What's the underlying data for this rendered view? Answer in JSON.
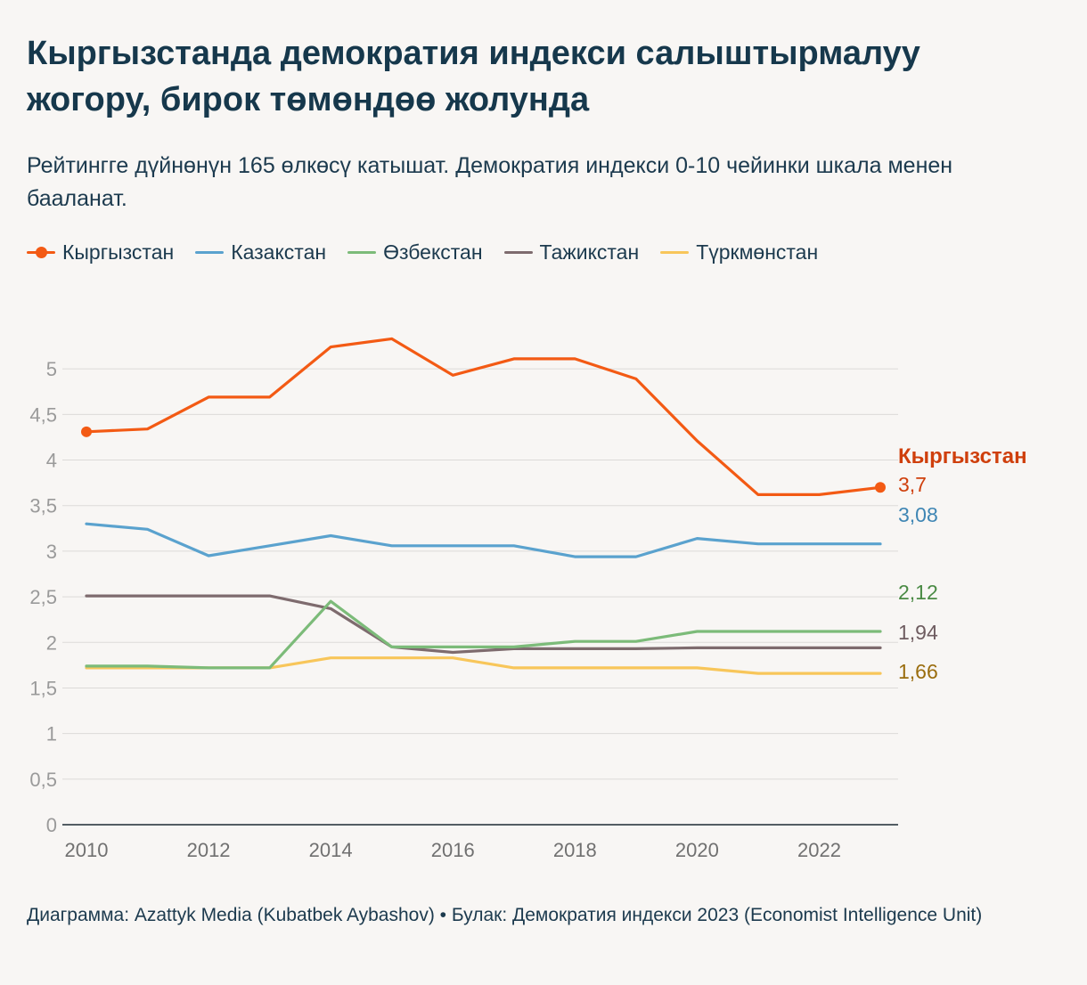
{
  "title": "Кыргызстанда демократия индекси салыштырмалуу жогору, бирок төмөндөө жолунда",
  "subtitle": "Рейтингге дүйнөнүн 165 өлкөсү катышат. Демократия индекси 0-10 чейинки шкала менен бааланат.",
  "footer": "Диаграмма: Azattyk Media (Kubatbek Aybashov) • Булак: Демократия индекси 2023 (Economist Intelligence Unit)",
  "legend": [
    {
      "label": "Кыргызстан",
      "color": "#f35a14",
      "marker": true
    },
    {
      "label": "Казакстан",
      "color": "#5aa2ce",
      "marker": false
    },
    {
      "label": "Өзбекстан",
      "color": "#7cbb79",
      "marker": false
    },
    {
      "label": "Тажикстан",
      "color": "#7e6b6e",
      "marker": false
    },
    {
      "label": "Түркмөнстан",
      "color": "#f8c65a",
      "marker": false
    }
  ],
  "chart_data": {
    "type": "line",
    "title": "Кыргызстанда демократия индекси салыштырмалуу жогору, бирок төмөндөө жолунда",
    "xlabel": "",
    "ylabel": "",
    "x": [
      2010,
      2011,
      2012,
      2013,
      2014,
      2015,
      2016,
      2017,
      2018,
      2019,
      2020,
      2021,
      2022,
      2023
    ],
    "xticks": [
      "2010",
      "2012",
      "2014",
      "2016",
      "2018",
      "2020",
      "2022"
    ],
    "yticks": [
      "0",
      "0,5",
      "1",
      "1,5",
      "2",
      "2,5",
      "3",
      "3,5",
      "4",
      "4,5",
      "5"
    ],
    "ylim": [
      0,
      5.5
    ],
    "grid": true,
    "series": [
      {
        "name": "Кыргызстан",
        "color": "#f35a14",
        "label_color": "#cf3f0c",
        "markers": true,
        "end_name": "Кыргызстан",
        "end_label": "3,7",
        "values": [
          4.31,
          4.34,
          4.69,
          4.69,
          5.24,
          5.33,
          4.93,
          5.11,
          5.11,
          4.89,
          4.21,
          3.62,
          3.62,
          3.7
        ]
      },
      {
        "name": "Казакстан",
        "color": "#5aa2ce",
        "label_color": "#3f86b4",
        "markers": false,
        "end_label": "3,08",
        "values": [
          3.3,
          3.24,
          2.95,
          3.06,
          3.17,
          3.06,
          3.06,
          3.06,
          2.94,
          2.94,
          3.14,
          3.08,
          3.08,
          3.08
        ]
      },
      {
        "name": "Өзбекстан",
        "color": "#7cbb79",
        "label_color": "#4a8a44",
        "markers": false,
        "end_label": "2,12",
        "values": [
          1.74,
          1.74,
          1.72,
          1.72,
          2.45,
          1.95,
          1.95,
          1.95,
          2.01,
          2.01,
          2.12,
          2.12,
          2.12,
          2.12
        ]
      },
      {
        "name": "Тажикстан",
        "color": "#7e6b6e",
        "label_color": "#6e5c60",
        "markers": false,
        "end_label": "1,94",
        "values": [
          2.51,
          2.51,
          2.51,
          2.51,
          2.37,
          1.95,
          1.89,
          1.93,
          1.93,
          1.93,
          1.94,
          1.94,
          1.94,
          1.94
        ]
      },
      {
        "name": "Түркмөнстан",
        "color": "#f8c65a",
        "label_color": "#9a6d0e",
        "markers": false,
        "end_label": "1,66",
        "values": [
          1.72,
          1.72,
          1.72,
          1.72,
          1.83,
          1.83,
          1.83,
          1.72,
          1.72,
          1.72,
          1.72,
          1.66,
          1.66,
          1.66
        ]
      }
    ]
  }
}
